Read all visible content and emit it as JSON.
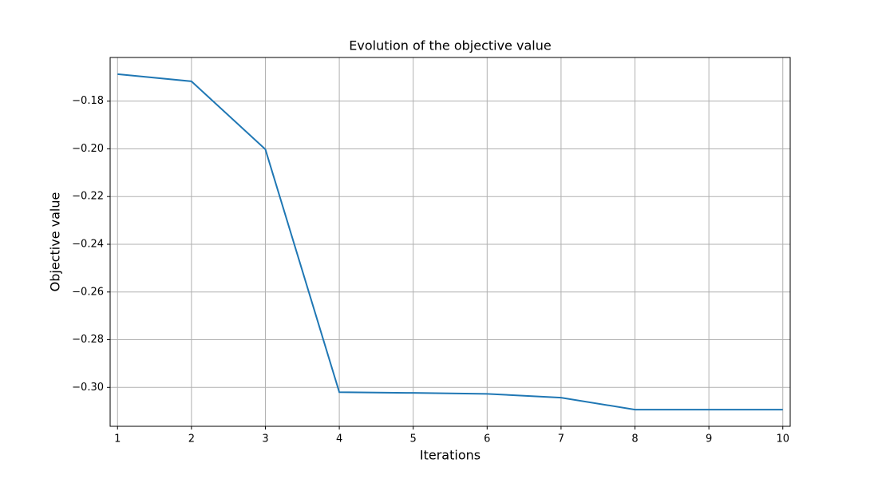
{
  "chart_data": {
    "type": "line",
    "title": "Evolution of the objective value",
    "x_label": "Iterations",
    "y_label": "Objective value",
    "x": [
      1,
      2,
      3,
      4,
      5,
      6,
      7,
      8,
      9,
      10
    ],
    "series": [
      {
        "color": "#1f77b4",
        "values": [
          -0.1687,
          -0.1717,
          -0.2002,
          -0.302,
          -0.3023,
          -0.3027,
          -0.3043,
          -0.3093,
          -0.3093,
          -0.3093
        ]
      }
    ],
    "xlim": [
      0.9,
      10.1
    ],
    "ylim": [
      -0.3163,
      -0.1617
    ],
    "xticks": [
      1,
      2,
      3,
      4,
      5,
      6,
      7,
      8,
      9,
      10
    ],
    "yticks": [
      {
        "value": -0.3,
        "label": "−0.30"
      },
      {
        "value": -0.28,
        "label": "−0.28"
      },
      {
        "value": -0.26,
        "label": "−0.26"
      },
      {
        "value": -0.24,
        "label": "−0.24"
      },
      {
        "value": -0.22,
        "label": "−0.22"
      },
      {
        "value": -0.2,
        "label": "−0.20"
      },
      {
        "value": -0.18,
        "label": "−0.18"
      }
    ],
    "grid": true
  }
}
